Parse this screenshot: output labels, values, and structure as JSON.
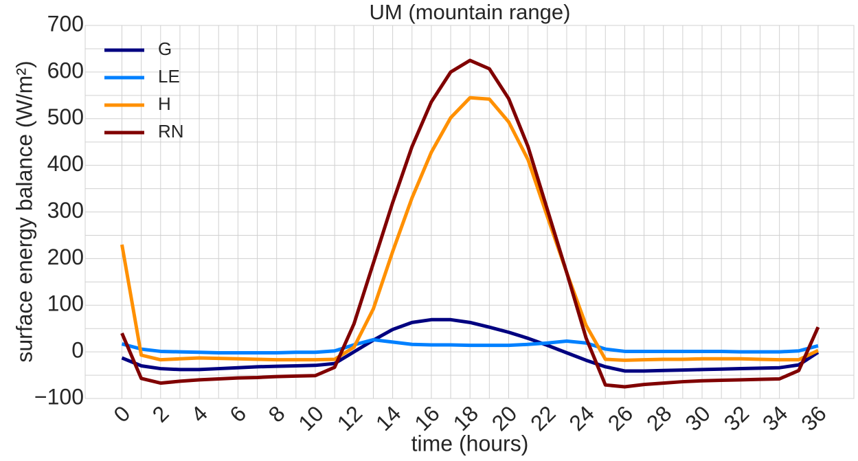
{
  "chart_data": {
    "type": "line",
    "title": "UM (mountain range)",
    "x_label": "time (hours)",
    "y_label": "surface energy balance (W/m²)",
    "x": [
      0,
      1,
      2,
      3,
      4,
      5,
      6,
      7,
      8,
      9,
      10,
      11,
      12,
      13,
      14,
      15,
      16,
      17,
      18,
      19,
      20,
      21,
      22,
      23,
      24,
      25,
      26,
      27,
      28,
      29,
      30,
      31,
      32,
      33,
      34,
      35,
      36
    ],
    "series": [
      {
        "name": "G",
        "color": "#000080",
        "values": [
          -13,
          -30,
          -36,
          -38,
          -38,
          -36,
          -34,
          -32,
          -31,
          -30,
          -29,
          -25,
          0,
          25,
          48,
          63,
          69,
          69,
          63,
          53,
          42,
          29,
          14,
          -2,
          -18,
          -32,
          -41,
          -41,
          -40,
          -39,
          -38,
          -37,
          -36,
          -35,
          -34,
          -28,
          -1
        ]
      },
      {
        "name": "LE",
        "color": "#0080ff",
        "values": [
          17,
          6,
          1,
          0,
          -1,
          -2,
          -2,
          -2,
          -2,
          -1,
          -1,
          2,
          15,
          26,
          21,
          16,
          15,
          15,
          14,
          14,
          14,
          16,
          19,
          23,
          19,
          6,
          1,
          1,
          1,
          1,
          1,
          1,
          0,
          0,
          0,
          2,
          13
        ]
      },
      {
        "name": "H",
        "color": "#ff9000",
        "values": [
          230,
          -7,
          -17,
          -15,
          -13,
          -14,
          -15,
          -16,
          -17,
          -17,
          -17,
          -16,
          10,
          92,
          215,
          330,
          428,
          502,
          545,
          542,
          493,
          412,
          290,
          170,
          57,
          -16,
          -18,
          -17,
          -16,
          -16,
          -15,
          -15,
          -15,
          -16,
          -17,
          -17,
          3
        ]
      },
      {
        "name": "RN",
        "color": "#800000",
        "values": [
          40,
          -57,
          -67,
          -63,
          -60,
          -58,
          -56,
          -55,
          -53,
          -52,
          -51,
          -33,
          60,
          190,
          320,
          440,
          536,
          600,
          625,
          607,
          543,
          440,
          305,
          170,
          30,
          -71,
          -75,
          -70,
          -67,
          -64,
          -62,
          -61,
          -60,
          -59,
          -58,
          -40,
          53
        ]
      }
    ],
    "xlim": [
      -1.9,
      37.85
    ],
    "ylim": [
      -100,
      700
    ],
    "xticks": [
      0,
      2,
      4,
      6,
      8,
      10,
      12,
      14,
      16,
      18,
      20,
      22,
      24,
      26,
      28,
      30,
      32,
      34,
      36
    ],
    "xminorticks": [
      1,
      3,
      5,
      7,
      9,
      11,
      13,
      15,
      17,
      19,
      21,
      23,
      25,
      27,
      29,
      31,
      33,
      35
    ],
    "yticks": [
      {
        "value": -100,
        "label": "−100"
      },
      0,
      100,
      200,
      300,
      400,
      500,
      600,
      700
    ],
    "yminorticks": [
      -50,
      50,
      150,
      250,
      350,
      450,
      550,
      650
    ],
    "grid": true,
    "legend": "upper left"
  }
}
